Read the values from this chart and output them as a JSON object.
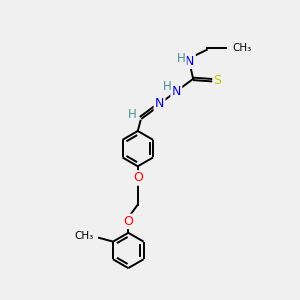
{
  "background_color": "#f0f0f0",
  "atom_colors": {
    "H": "#4a9090",
    "N": "#0000e0",
    "O": "#ff0000",
    "S": "#c8c800"
  },
  "bond_color": "#000000",
  "bond_lw": 1.4,
  "figsize": [
    3.0,
    3.0
  ],
  "dpi": 100,
  "xlim": [
    -1.5,
    5.5
  ],
  "ylim": [
    -0.5,
    10.5
  ]
}
